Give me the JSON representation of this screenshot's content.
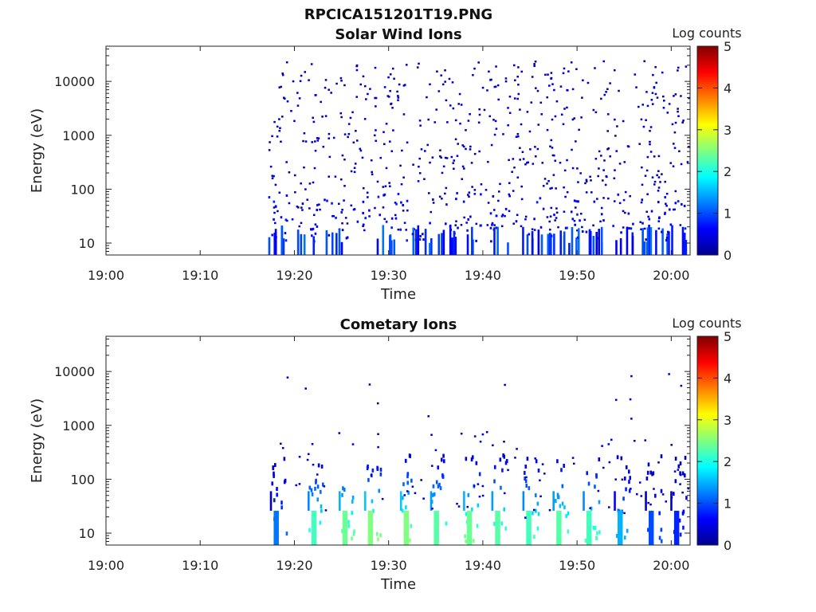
{
  "figure": {
    "title": "RPCICA151201T19.PNG"
  },
  "colormap": [
    "#00008f",
    "#0000ff",
    "#0080ff",
    "#00ffff",
    "#80ff80",
    "#ffff00",
    "#ff8000",
    "#ff0000",
    "#800000"
  ],
  "chart_data": [
    {
      "type": "heatmap",
      "title": "Solar Wind Ions",
      "xlabel": "Time",
      "ylabel": "Energy (eV)",
      "xlim": [
        "19:00",
        "20:02"
      ],
      "ylim": [
        6,
        45000
      ],
      "yscale": "log",
      "xticks": [
        "19:00",
        "19:10",
        "19:20",
        "19:30",
        "19:40",
        "19:50",
        "20:00"
      ],
      "yticks": [
        "10",
        "100",
        "1000",
        "10000"
      ],
      "colorbar": {
        "label": "Log counts",
        "range": [
          0,
          5
        ],
        "ticks": [
          "0",
          "1",
          "2",
          "3",
          "4",
          "5"
        ]
      },
      "data_start": "19:17",
      "description_values": {
        "dominant_log_counts": 0.3,
        "low_energy_band_log_counts": [
          0.5,
          1.2
        ]
      }
    },
    {
      "type": "heatmap",
      "title": "Cometary Ions",
      "xlabel": "Time",
      "ylabel": "Energy (eV)",
      "xlim": [
        "19:00",
        "20:02"
      ],
      "ylim": [
        6,
        45000
      ],
      "yscale": "log",
      "xticks": [
        "19:00",
        "19:10",
        "19:20",
        "19:30",
        "19:40",
        "19:50",
        "20:00"
      ],
      "yticks": [
        "10",
        "100",
        "1000",
        "10000"
      ],
      "colorbar": {
        "label": "Log counts",
        "range": [
          0,
          5
        ],
        "ticks": [
          "0",
          "1",
          "2",
          "3",
          "4",
          "5"
        ]
      },
      "data_start": "19:17",
      "bursts": [
        {
          "time": "19:18.0",
          "log_counts_peak": 1.2
        },
        {
          "time": "19:22.0",
          "log_counts_peak": 2.2
        },
        {
          "time": "19:25.3",
          "log_counts_peak": 2.4
        },
        {
          "time": "19:28.0",
          "log_counts_peak": 2.5
        },
        {
          "time": "19:31.8",
          "log_counts_peak": 2.5
        },
        {
          "time": "19:35.0",
          "log_counts_peak": 2.3
        },
        {
          "time": "19:38.5",
          "log_counts_peak": 2.4
        },
        {
          "time": "19:41.5",
          "log_counts_peak": 2.3
        },
        {
          "time": "19:44.8",
          "log_counts_peak": 2.2
        },
        {
          "time": "19:48.0",
          "log_counts_peak": 2.3
        },
        {
          "time": "19:51.2",
          "log_counts_peak": 2.2
        },
        {
          "time": "19:54.5",
          "log_counts_peak": 1.5
        },
        {
          "time": "19:57.8",
          "log_counts_peak": 1.0
        },
        {
          "time": "20:00.5",
          "log_counts_peak": 0.8
        }
      ]
    }
  ]
}
